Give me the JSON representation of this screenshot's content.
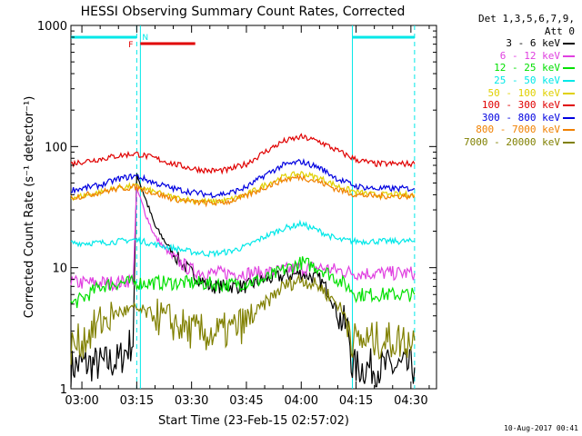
{
  "chart_data": {
    "type": "line",
    "title": "HESSI Observing Summary Count Rates, Corrected",
    "xlabel": "Start Time (23-Feb-15 02:57:02)",
    "ylabel": "Corrected Count Rate (s⁻¹ detector⁻¹)",
    "ylog": true,
    "xlim": [
      "02:57",
      "04:37"
    ],
    "ylim": [
      1,
      1000
    ],
    "x_ticks": [
      "03:00",
      "03:15",
      "03:30",
      "03:45",
      "04:00",
      "04:15",
      "04:30"
    ],
    "y_ticks": [
      "1",
      "10",
      "100",
      "1000"
    ],
    "legend_header": [
      "Det 1,3,5,6,7,9,",
      "Att 0"
    ],
    "legend_position": "right",
    "series": [
      {
        "name": "3 - 6 keV",
        "color": "#000000",
        "x": [
          "02:57",
          "03:00",
          "03:05",
          "03:10",
          "03:14",
          "03:15",
          "03:17",
          "03:20",
          "03:25",
          "03:30",
          "03:35",
          "03:40",
          "03:45",
          "03:50",
          "03:55",
          "04:00",
          "04:05",
          "04:08",
          "04:10",
          "04:13",
          "04:14",
          "04:20",
          "04:25",
          "04:30",
          "04:31"
        ],
        "y": [
          1.5,
          1.6,
          1.6,
          1.7,
          2.5,
          60,
          40,
          22,
          13,
          9,
          7,
          7,
          7,
          8,
          8.5,
          9,
          8,
          6,
          4,
          3,
          1.5,
          1.5,
          1.5,
          1.5,
          1.5
        ]
      },
      {
        "name": "6 - 12 keV",
        "color": "#e040e0",
        "x": [
          "02:57",
          "03:00",
          "03:05",
          "03:10",
          "03:14",
          "03:15",
          "03:17",
          "03:20",
          "03:25",
          "03:30",
          "03:35",
          "03:40",
          "03:45",
          "03:50",
          "03:55",
          "04:00",
          "04:05",
          "04:10",
          "04:15",
          "04:20",
          "04:25",
          "04:31"
        ],
        "y": [
          7.5,
          7.5,
          7.5,
          7.5,
          8,
          45,
          30,
          18,
          12,
          9.5,
          9,
          9,
          9,
          9,
          9.5,
          10,
          10,
          9.5,
          9,
          9,
          9,
          9
        ]
      },
      {
        "name": "12 - 25 keV",
        "color": "#00e000",
        "x": [
          "02:57",
          "03:00",
          "03:05",
          "03:10",
          "03:14",
          "03:15",
          "03:20",
          "03:30",
          "03:40",
          "03:45",
          "03:50",
          "03:55",
          "04:00",
          "04:05",
          "04:10",
          "04:14",
          "04:15",
          "04:20",
          "04:25",
          "04:31"
        ],
        "y": [
          5,
          5.5,
          7,
          7.5,
          7.5,
          7.5,
          7.5,
          7.5,
          7.2,
          7.5,
          8,
          9.5,
          11,
          10,
          8,
          6.5,
          6,
          6,
          6,
          6
        ]
      },
      {
        "name": "25 - 50 keV",
        "color": "#00e8e8",
        "x": [
          "02:57",
          "03:00",
          "03:05",
          "03:10",
          "03:14",
          "03:15",
          "03:20",
          "03:25",
          "03:30",
          "03:35",
          "03:40",
          "03:45",
          "03:50",
          "03:55",
          "04:00",
          "04:05",
          "04:10",
          "04:15",
          "04:20",
          "04:25",
          "04:31"
        ],
        "y": [
          16,
          16,
          16,
          16.5,
          17,
          17,
          15.5,
          14.5,
          13.5,
          13,
          13.5,
          15,
          18,
          21,
          23,
          20,
          17,
          16.5,
          16.5,
          16.5,
          16.5
        ]
      },
      {
        "name": "50 - 100 keV",
        "color": "#e0d000",
        "x": [
          "02:57",
          "03:00",
          "03:05",
          "03:10",
          "03:14",
          "03:15",
          "03:20",
          "03:25",
          "03:30",
          "03:35",
          "03:40",
          "03:45",
          "03:50",
          "03:55",
          "04:00",
          "04:05",
          "04:10",
          "04:15",
          "04:20",
          "04:25",
          "04:31"
        ],
        "y": [
          38,
          39,
          42,
          46,
          47,
          47,
          42,
          38,
          36,
          35,
          36,
          40,
          48,
          56,
          60,
          55,
          47,
          42,
          40,
          40,
          40
        ]
      },
      {
        "name": "100 - 300 keV",
        "color": "#e00000",
        "x": [
          "02:57",
          "03:00",
          "03:05",
          "03:10",
          "03:14",
          "03:15",
          "03:20",
          "03:25",
          "03:30",
          "03:35",
          "03:40",
          "03:45",
          "03:50",
          "03:55",
          "04:00",
          "04:05",
          "04:10",
          "04:15",
          "04:20",
          "04:25",
          "04:31"
        ],
        "y": [
          72,
          75,
          79,
          84,
          87,
          87,
          80,
          72,
          66,
          63,
          64,
          72,
          90,
          110,
          120,
          110,
          92,
          78,
          72,
          72,
          72
        ]
      },
      {
        "name": "300 - 800 keV",
        "color": "#0000e0",
        "x": [
          "02:57",
          "03:00",
          "03:05",
          "03:10",
          "03:14",
          "03:15",
          "03:20",
          "03:25",
          "03:30",
          "03:35",
          "03:40",
          "03:45",
          "03:50",
          "03:55",
          "04:00",
          "04:05",
          "04:10",
          "04:15",
          "04:20",
          "04:25",
          "04:31"
        ],
        "y": [
          44,
          45,
          48,
          54,
          57,
          57,
          50,
          45,
          42,
          40,
          41,
          46,
          58,
          70,
          75,
          67,
          54,
          47,
          45,
          45,
          45
        ]
      },
      {
        "name": "800 - 7000 keV",
        "color": "#f08000",
        "x": [
          "02:57",
          "03:00",
          "03:05",
          "03:10",
          "03:14",
          "03:15",
          "03:20",
          "03:25",
          "03:30",
          "03:35",
          "03:40",
          "03:45",
          "03:50",
          "03:55",
          "04:00",
          "04:05",
          "04:10",
          "04:15",
          "04:20",
          "04:25",
          "04:31"
        ],
        "y": [
          38,
          39,
          42,
          45,
          46,
          46,
          41,
          37,
          35,
          34,
          35,
          39,
          46,
          53,
          56,
          51,
          44,
          40,
          39,
          39,
          39
        ]
      },
      {
        "name": "7000 - 20000 keV",
        "color": "#808000",
        "x": [
          "02:57",
          "03:00",
          "03:05",
          "03:10",
          "03:14",
          "03:15",
          "03:20",
          "03:25",
          "03:30",
          "03:35",
          "03:40",
          "03:45",
          "03:50",
          "03:55",
          "04:00",
          "04:05",
          "04:10",
          "04:13",
          "04:14",
          "04:20",
          "04:25",
          "04:31"
        ],
        "y": [
          2.2,
          2.5,
          3.5,
          4.3,
          4.5,
          4.5,
          4,
          3.5,
          3,
          2.8,
          3,
          3.5,
          5,
          7,
          8,
          7,
          5,
          3.5,
          2.5,
          2.5,
          2.5,
          2.5
        ]
      }
    ],
    "annotations": [
      {
        "label": "F",
        "color": "#e00000"
      },
      {
        "label": "N",
        "color": "#00e8e8"
      }
    ],
    "night_bars": [
      [
        "02:57",
        "03:15"
      ],
      [
        "04:14",
        "04:31"
      ]
    ],
    "flare_bar": [
      "03:16",
      "03:31"
    ],
    "vlines_solid": [
      "03:16",
      "04:14"
    ],
    "vlines_dashed": [
      "03:15",
      "04:31"
    ]
  },
  "timestamp": "10-Aug-2017 00:41"
}
